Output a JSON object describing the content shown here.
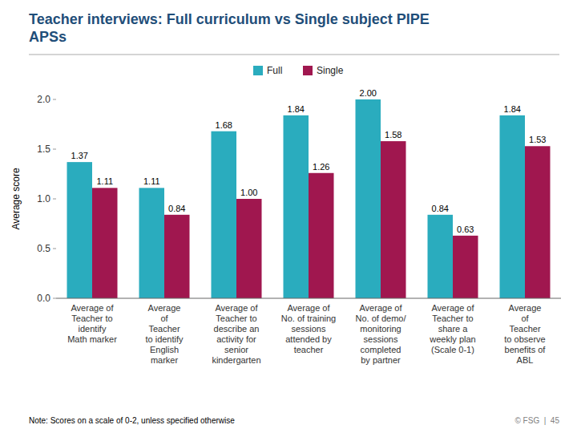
{
  "chart_data": {
    "type": "bar",
    "title": "Teacher interviews: Full curriculum vs Single subject PIPE\nAPSs",
    "y_label": "Average score",
    "categories": [
      "Average of\nTeacher to\nidentify\nMath marker",
      "Average\nof\nTeacher\nto identify\nEnglish\nmarker",
      "Average of\nTeacher to\ndescribe an\nactivity for\nsenior\nkindergarten",
      "Average of\nNo. of training\nsessions\nattended by\nteacher",
      "Average of\nNo. of demo/\nmonitoring\nsessions\ncompleted\nby partner",
      "Average of\nTeacher to\nshare a\nweekly plan\n(Scale 0-1)",
      "Average\nof\nTeacher\nto observe\nbenefits of\nABL"
    ],
    "series": [
      {
        "name": "Full",
        "color": "#2AACBE",
        "values": [
          1.37,
          1.11,
          1.68,
          1.84,
          2.0,
          0.84,
          1.84
        ],
        "value_labels": [
          "1.37",
          "1.11",
          "1.68",
          "1.84",
          "2.00",
          "0.84",
          "1.84"
        ]
      },
      {
        "name": "Single",
        "color": "#A0174F",
        "values": [
          1.11,
          0.84,
          1.0,
          1.26,
          1.58,
          0.63,
          1.53
        ],
        "value_labels": [
          "1.11",
          "0.84",
          "1.00",
          "1.26",
          "1.58",
          "0.63",
          "1.53"
        ]
      }
    ],
    "ylim": [
      0.0,
      2.0
    ],
    "yticks": [
      {
        "value": 0,
        "label": "0.0"
      },
      0.5,
      {
        "value": 1,
        "label": "1.0"
      },
      1.5,
      {
        "value": 2,
        "label": "2.0"
      }
    ],
    "grid": false,
    "legend": "top",
    "data_labels": true,
    "annotations": [
      "Note: Scores on a scale of 0-2, unless specified otherwise",
      "© FSG  |  45"
    ]
  }
}
